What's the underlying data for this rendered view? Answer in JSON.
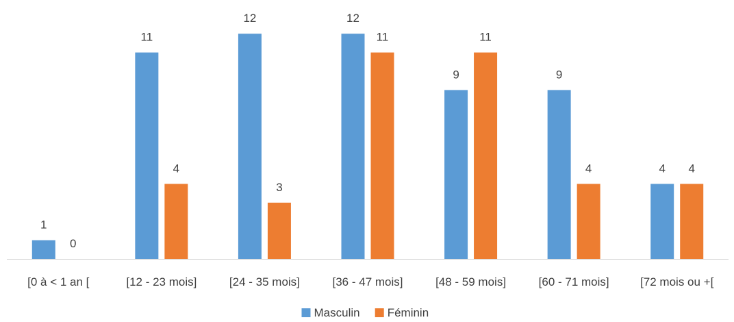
{
  "chart_data": {
    "type": "bar",
    "categories": [
      "[0 à < 1 an [",
      "[12 - 23 mois]",
      "[24 - 35 mois]",
      "[36 - 47 mois]",
      "[48 - 59 mois]",
      "[60 - 71 mois]",
      "[72 mois ou +["
    ],
    "series": [
      {
        "name": "Masculin",
        "values": [
          1,
          11,
          12,
          12,
          9,
          9,
          4
        ],
        "color": "#5B9BD5"
      },
      {
        "name": "Féminin",
        "values": [
          0,
          4,
          3,
          11,
          11,
          4,
          4
        ],
        "color": "#ED7D31"
      }
    ],
    "ylim": [
      0,
      12
    ],
    "grid": false,
    "legend_position": "bottom-center",
    "axis_color": "#D9D9D9"
  }
}
